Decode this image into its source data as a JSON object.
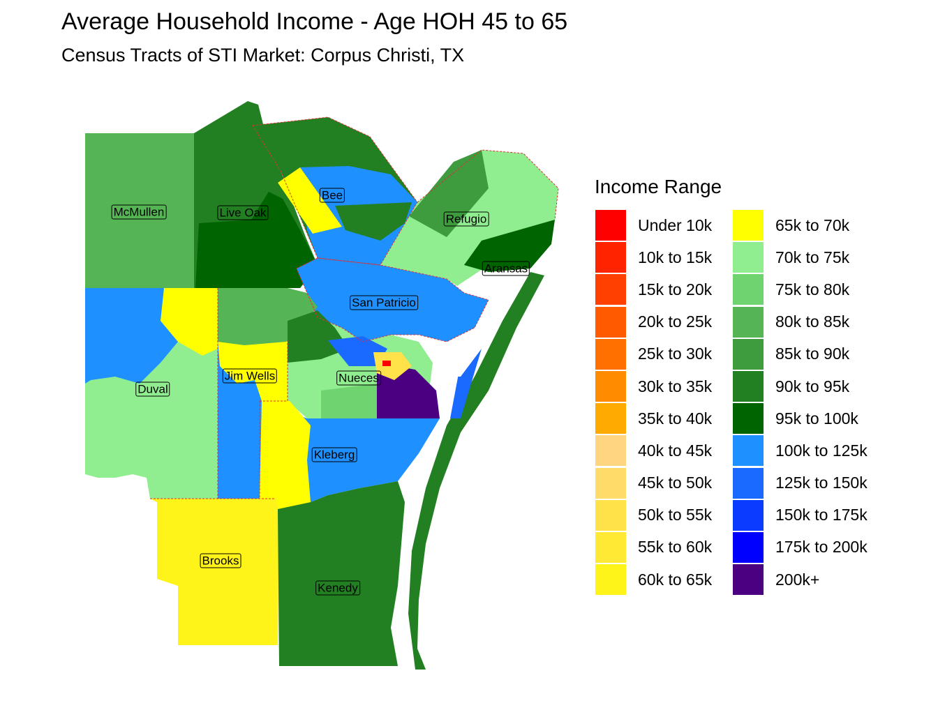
{
  "title": "Average Household Income - Age HOH 45 to 65",
  "subtitle": "Census Tracts of STI Market: Corpus Christi, TX",
  "legend": {
    "title": "Income Range",
    "items": [
      {
        "label": "Under 10k",
        "color": "#FF0000"
      },
      {
        "label": "10k to 15k",
        "color": "#FF2400"
      },
      {
        "label": "15k to 20k",
        "color": "#FF4000"
      },
      {
        "label": "20k to 25k",
        "color": "#FF5A00"
      },
      {
        "label": "25k to 30k",
        "color": "#FF7000"
      },
      {
        "label": "30k to 35k",
        "color": "#FF8C00"
      },
      {
        "label": "35k to 40k",
        "color": "#FFAA00"
      },
      {
        "label": "40k to 45k",
        "color": "#FFD580"
      },
      {
        "label": "45k to 50k",
        "color": "#FFDB6A"
      },
      {
        "label": "50k to 55k",
        "color": "#FFE24A"
      },
      {
        "label": "55k to 60k",
        "color": "#FFE935"
      },
      {
        "label": "60k to 65k",
        "color": "#FFF41A"
      },
      {
        "label": "65k to 70k",
        "color": "#FFFF00"
      },
      {
        "label": "70k to 75k",
        "color": "#90EE90"
      },
      {
        "label": "75k to 80k",
        "color": "#6FD46F"
      },
      {
        "label": "80k to 85k",
        "color": "#55B555"
      },
      {
        "label": "85k to 90k",
        "color": "#3E9B3E"
      },
      {
        "label": "90k to 95k",
        "color": "#228022"
      },
      {
        "label": "95k to 100k",
        "color": "#006400"
      },
      {
        "label": "100k to 125k",
        "color": "#1E90FF"
      },
      {
        "label": "125k to 150k",
        "color": "#1A6AFF"
      },
      {
        "label": "150k to 175k",
        "color": "#0A3CFF"
      },
      {
        "label": "175k to 200k",
        "color": "#0000FF"
      },
      {
        "label": "200k+",
        "color": "#4B0082"
      }
    ]
  },
  "counties": [
    {
      "name": "McMullen",
      "fill": "80k to 85k"
    },
    {
      "name": "Live Oak",
      "fill": "95k to 100k"
    },
    {
      "name": "Bee",
      "fill": "100k to 125k"
    },
    {
      "name": "Refugio",
      "fill": "70k to 75k"
    },
    {
      "name": "Aransas",
      "fill": "95k to 100k"
    },
    {
      "name": "San Patricio",
      "fill": "100k to 125k"
    },
    {
      "name": "Duval",
      "fill": "70k to 75k"
    },
    {
      "name": "Jim Wells",
      "fill": "60k to 65k"
    },
    {
      "name": "Nueces",
      "fill": "70k to 75k"
    },
    {
      "name": "Kleberg",
      "fill": "100k to 125k"
    },
    {
      "name": "Brooks",
      "fill": "60k to 65k"
    },
    {
      "name": "Kenedy",
      "fill": "90k to 95k"
    }
  ]
}
